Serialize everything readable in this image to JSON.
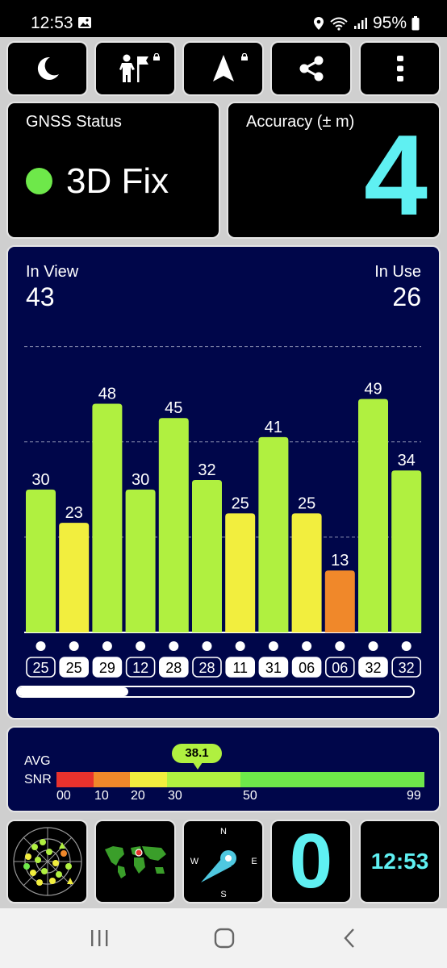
{
  "status_bar": {
    "time": "12:53",
    "battery": "95%"
  },
  "toolbar": {
    "items": [
      "night-mode",
      "map-pin",
      "navigation",
      "share",
      "more-options"
    ]
  },
  "gnss": {
    "title": "GNSS Status",
    "fix": "3D Fix",
    "fix_color": "#6ee84a"
  },
  "accuracy": {
    "title": "Accuracy (± m)",
    "value": "4"
  },
  "sky": {
    "in_view_label": "In View",
    "in_view": "43",
    "in_use_label": "In Use",
    "in_use": "26",
    "scroll_fraction": 0.28
  },
  "chart_data": {
    "type": "bar",
    "categories": [
      "25",
      "25",
      "29",
      "12",
      "28",
      "28",
      "11",
      "31",
      "06",
      "06",
      "32",
      "32"
    ],
    "values": [
      30,
      23,
      48,
      30,
      45,
      32,
      25,
      41,
      25,
      13,
      49,
      34
    ],
    "label_filled": [
      false,
      true,
      true,
      false,
      true,
      false,
      true,
      true,
      true,
      false,
      true,
      false
    ],
    "ylim": [
      0,
      64
    ],
    "grid": true
  },
  "snr": {
    "label_line1": "AVG",
    "label_line2": "SNR",
    "average": "38.1",
    "average_value": 38.1,
    "ticks": [
      "00",
      "10",
      "20",
      "30",
      "50",
      "99"
    ],
    "colors": {
      "poor": "#e8322d",
      "weak": "#f0882a",
      "fair": "#f2ee3e",
      "good": "#b0f040",
      "excellent": "#6ee84a"
    }
  },
  "bottom": {
    "compass": {
      "n": "N",
      "e": "E",
      "s": "S",
      "w": "W"
    },
    "satellites_count": "0",
    "clock": "12:53"
  }
}
